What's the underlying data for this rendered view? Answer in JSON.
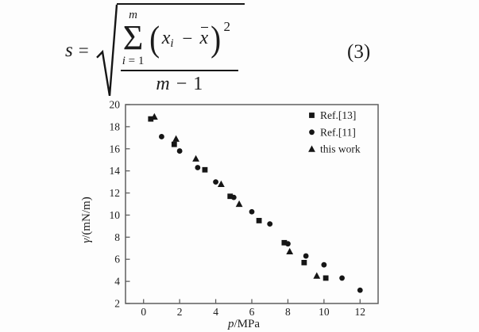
{
  "equation": {
    "lhs": "s",
    "rel": "=",
    "sum": {
      "upper": "m",
      "symbol": "Σ",
      "lower_var": "i",
      "lower_rel": "=",
      "lower_val": "1"
    },
    "term": {
      "open": "(",
      "base": "x",
      "sub": "i",
      "op": "−",
      "mean_base": "x",
      "close": ")",
      "power": "2"
    },
    "den": {
      "var": "m",
      "op": "−",
      "val": "1"
    },
    "label": "(3)"
  },
  "chart_data": {
    "type": "scatter",
    "title": "",
    "xlabel": "p/MPa",
    "ylabel": "γ/(mN/m)",
    "xlim": [
      -1,
      13
    ],
    "ylim": [
      2,
      20
    ],
    "x_ticks": [
      0,
      2,
      4,
      6,
      8,
      10,
      12
    ],
    "y_ticks": [
      2,
      4,
      6,
      8,
      10,
      12,
      14,
      16,
      18,
      20
    ],
    "grid": false,
    "legend_position": "top-right-inside",
    "marker_color": "#161616",
    "axis_color": "#5f5f5f",
    "series": [
      {
        "name": "Ref.[13]",
        "marker": "square",
        "points": [
          [
            0.4,
            18.7
          ],
          [
            1.7,
            16.4
          ],
          [
            3.4,
            14.1
          ],
          [
            4.8,
            11.7
          ],
          [
            6.4,
            9.5
          ],
          [
            7.8,
            7.5
          ],
          [
            8.9,
            5.7
          ],
          [
            10.1,
            4.3
          ]
        ]
      },
      {
        "name": "Ref.[11]",
        "marker": "circle",
        "points": [
          [
            1.0,
            17.1
          ],
          [
            2.0,
            15.8
          ],
          [
            3.0,
            14.3
          ],
          [
            4.0,
            13.0
          ],
          [
            5.0,
            11.6
          ],
          [
            6.0,
            10.3
          ],
          [
            7.0,
            9.2
          ],
          [
            8.0,
            7.4
          ],
          [
            9.0,
            6.3
          ],
          [
            10.0,
            5.5
          ],
          [
            11.0,
            4.3
          ],
          [
            12.0,
            3.2
          ]
        ]
      },
      {
        "name": "this work",
        "marker": "triangle",
        "points": [
          [
            0.6,
            18.9
          ],
          [
            1.8,
            16.9
          ],
          [
            2.9,
            15.1
          ],
          [
            4.3,
            12.8
          ],
          [
            5.3,
            11.0
          ],
          [
            8.1,
            6.7
          ],
          [
            9.6,
            4.5
          ]
        ]
      }
    ]
  }
}
